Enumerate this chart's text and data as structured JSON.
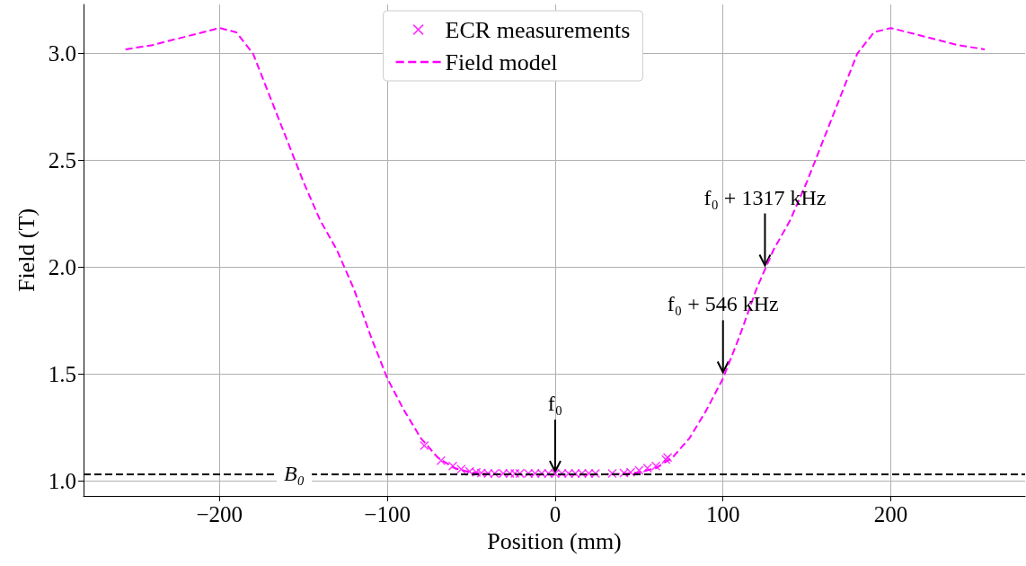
{
  "chart_data": {
    "type": "line",
    "xlabel": "Position (mm)",
    "ylabel": "Field (T)",
    "xlim": [
      -281,
      280
    ],
    "ylim": [
      0.93,
      3.23
    ],
    "xticks": [
      {
        "value": -200,
        "label": "−200"
      },
      {
        "value": -100,
        "label": "−100"
      },
      0,
      100,
      200
    ],
    "yticks": [
      {
        "value": 1,
        "label": "1.0"
      },
      1.5,
      {
        "value": 2,
        "label": "2.0"
      },
      2.5,
      {
        "value": 3,
        "label": "3.0"
      }
    ],
    "grid": true,
    "legend": "top",
    "series": [
      {
        "name": "ECR measurements",
        "type": "scatter",
        "marker": "cross",
        "color": "#ff00ff",
        "x": [
          -78,
          -68,
          -61,
          -56,
          -51,
          -47,
          -44,
          -40,
          -36,
          -31,
          -27,
          -24,
          -21,
          -16,
          -12,
          -8,
          -4,
          0,
          4,
          8,
          12,
          16,
          20,
          24,
          34,
          41,
          45,
          50,
          55,
          60,
          66,
          67
        ],
        "values": [
          1.165,
          1.095,
          1.07,
          1.055,
          1.045,
          1.04,
          1.037,
          1.035,
          1.035,
          1.035,
          1.035,
          1.035,
          1.035,
          1.035,
          1.035,
          1.035,
          1.035,
          1.035,
          1.035,
          1.035,
          1.035,
          1.035,
          1.035,
          1.035,
          1.035,
          1.037,
          1.04,
          1.05,
          1.06,
          1.07,
          1.1,
          1.11
        ]
      },
      {
        "name": "Field model",
        "marker": "none",
        "line_style": "dashed",
        "color": "#ff00ff",
        "x": [
          -256,
          -240,
          -220,
          -200,
          -190,
          -180,
          -170,
          -160,
          -150,
          -140,
          -130,
          -120,
          -110,
          -100,
          -90,
          -80,
          -70,
          -60,
          -50,
          -40,
          -20,
          0,
          20,
          40,
          50,
          60,
          70,
          80,
          90,
          100,
          110,
          120,
          130,
          140,
          150,
          160,
          170,
          180,
          190,
          200,
          220,
          240,
          256
        ],
        "values": [
          3.02,
          3.04,
          3.08,
          3.12,
          3.1,
          3.0,
          2.8,
          2.6,
          2.4,
          2.22,
          2.08,
          1.9,
          1.68,
          1.48,
          1.33,
          1.2,
          1.11,
          1.06,
          1.04,
          1.033,
          1.03,
          1.03,
          1.03,
          1.033,
          1.04,
          1.06,
          1.11,
          1.2,
          1.33,
          1.48,
          1.68,
          1.9,
          2.08,
          2.22,
          2.4,
          2.6,
          2.8,
          3.0,
          3.1,
          3.12,
          3.08,
          3.04,
          3.02
        ]
      }
    ],
    "ref_lines": [
      {
        "axis": "y",
        "value": 1.035,
        "label": "B₀",
        "color": "#000000",
        "line_style": "dashed"
      }
    ],
    "annotations": [
      {
        "text": "f₀",
        "x": 0,
        "y": 1.035
      },
      {
        "text": "f₀ + 546 kHz",
        "x": 100,
        "y": 1.5
      },
      {
        "text": "f₀ + 1317 kHz",
        "x": 125,
        "y": 2.0
      }
    ]
  }
}
